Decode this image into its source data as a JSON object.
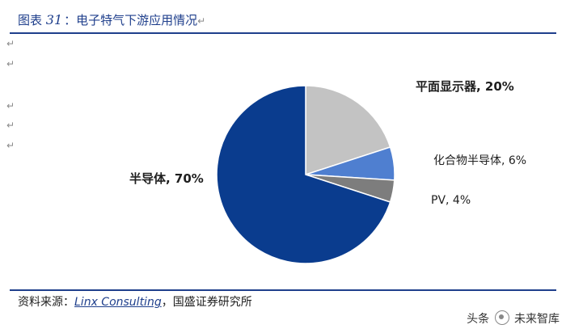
{
  "caption": {
    "prefix": "图表",
    "number": "31",
    "title": "：电子特气下游应用情况",
    "para_mark": "↵"
  },
  "left_para_marks": [
    "↵",
    "↵",
    "↵",
    "↵",
    "↵"
  ],
  "chart_data": {
    "type": "pie",
    "slices": [
      {
        "label": "平面显示器, 20%",
        "value": 20,
        "color": "#c3c3c3"
      },
      {
        "label": "化合物半导体, 6%",
        "value": 6,
        "color": "#4f7fd0"
      },
      {
        "label": "PV, 4%",
        "value": 4,
        "color": "#7d7d7d"
      },
      {
        "label": "半导体, 70%",
        "value": 70,
        "color": "#0a3c8e"
      }
    ],
    "start": "12 o'clock",
    "direction": "clockwise",
    "legend": "none"
  },
  "source": {
    "prefix": "资料来源：",
    "brand": "Linx Consulting",
    "suffix": "，国盛证券研究所"
  },
  "watermark": {
    "left": "头条",
    "right": "未来智库"
  }
}
